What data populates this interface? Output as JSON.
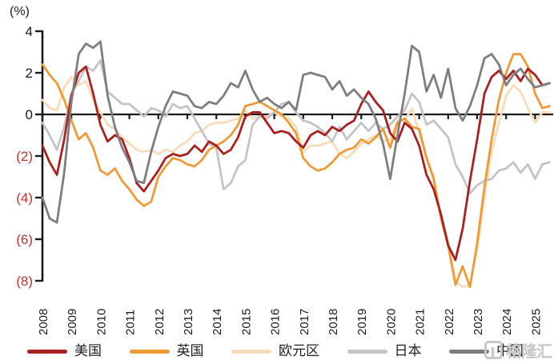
{
  "chart": {
    "unit_label": "(%)",
    "axis_color": "#1a1a1a",
    "positive_tick_color": "#1a1a1a",
    "negative_tick_color": "#c0302c",
    "y_tick_labels": [
      "4",
      "2",
      "0",
      "(2)",
      "(4)",
      "(6)",
      "(8)"
    ],
    "y_tick_values": [
      4,
      2,
      0,
      -2,
      -4,
      -6,
      -8
    ]
  },
  "chart_data": {
    "type": "line",
    "title": "",
    "ylabel": "(%)",
    "xlabel": "",
    "ylim": [
      -8,
      4
    ],
    "xlim": [
      2008,
      2025.5
    ],
    "grid": false,
    "legend_position": "bottom",
    "x_start": 2008,
    "x_step": 0.25,
    "x_tick_labels": [
      "2008",
      "2009",
      "2010",
      "2011",
      "2012",
      "2013",
      "2014",
      "2015",
      "2016",
      "2017",
      "2018",
      "2019",
      "2020",
      "2021",
      "2022",
      "2023",
      "2024",
      "2025"
    ],
    "z_order": [
      "eurozone",
      "japan",
      "uk",
      "us",
      "china"
    ],
    "series": [
      {
        "key": "us",
        "name": "美国",
        "color": "#a8201f",
        "values": [
          -1.5,
          -2.3,
          -2.9,
          -1.2,
          0.9,
          2.0,
          2.3,
          1.0,
          -0.5,
          -1.3,
          -1.0,
          -1.2,
          -2.1,
          -3.3,
          -3.7,
          -3.2,
          -2.7,
          -2.1,
          -1.9,
          -2.0,
          -1.9,
          -1.5,
          -1.8,
          -1.3,
          -1.5,
          -1.9,
          -1.7,
          -1.1,
          -0.1,
          0.1,
          0.1,
          -0.4,
          -0.9,
          -0.8,
          -0.9,
          -1.3,
          -1.6,
          -1.0,
          -0.8,
          -1.0,
          -0.6,
          -0.8,
          -0.5,
          -0.3,
          0.5,
          1.1,
          0.6,
          0.2,
          -0.9,
          -1.3,
          -0.4,
          -0.7,
          -1.5,
          -2.9,
          -3.6,
          -4.8,
          -6.3,
          -7.0,
          -5.5,
          -3.2,
          -1.2,
          1.0,
          1.8,
          2.1,
          1.7,
          2.1,
          1.6,
          2.2,
          1.9,
          1.4,
          1.5
        ]
      },
      {
        "key": "uk",
        "name": "英国",
        "color": "#ee9a36",
        "values": [
          2.4,
          1.9,
          1.5,
          0.7,
          -0.3,
          -1.2,
          -0.9,
          -1.6,
          -2.7,
          -2.9,
          -2.6,
          -3.2,
          -3.6,
          -4.1,
          -4.4,
          -4.2,
          -3.0,
          -2.5,
          -2.1,
          -2.2,
          -2.4,
          -2.5,
          -2.2,
          -1.7,
          -1.5,
          -1.3,
          -1.0,
          -0.5,
          0.4,
          0.5,
          0.6,
          0.4,
          0.2,
          0.0,
          -0.4,
          -0.9,
          -2.1,
          -2.5,
          -2.7,
          -2.6,
          -2.3,
          -1.9,
          -1.7,
          -1.6,
          -1.2,
          -1.4,
          -1.1,
          -0.7,
          -1.6,
          -0.4,
          -0.2,
          -0.6,
          -0.7,
          -2.1,
          -3.1,
          -5.0,
          -6.3,
          -8.2,
          -7.3,
          -8.3,
          -6.2,
          -3.5,
          -1.2,
          0.7,
          2.0,
          2.9,
          2.9,
          2.3,
          1.0,
          0.3,
          0.4
        ]
      },
      {
        "key": "eurozone",
        "name": "欧元区",
        "color": "#f6dcba",
        "values": [
          0.7,
          0.3,
          0.2,
          1.3,
          1.8,
          1.4,
          1.6,
          0.7,
          0.1,
          -0.5,
          -0.7,
          -1.1,
          -1.4,
          -1.7,
          -1.8,
          -1.7,
          -1.9,
          -1.7,
          -1.8,
          -1.5,
          -1.3,
          -0.9,
          -0.8,
          -0.5,
          -0.4,
          -0.4,
          -0.3,
          -0.2,
          0.2,
          -0.2,
          -0.1,
          -0.1,
          0.1,
          -0.1,
          -0.2,
          -0.6,
          -1.8,
          -1.5,
          -1.5,
          -1.4,
          -1.3,
          -1.9,
          -2.1,
          -1.8,
          -1.4,
          -1.2,
          -1.0,
          -1.3,
          -1.2,
          -0.3,
          -0.3,
          0.3,
          -0.9,
          -2.0,
          -3.0,
          -4.9,
          -6.1,
          -8.0,
          -8.3,
          -8.2,
          -6.5,
          -4.0,
          -1.8,
          -0.4,
          0.9,
          1.4,
          1.1,
          0.3,
          -0.4,
          0.1,
          0.1
        ]
      },
      {
        "key": "japan",
        "name": "日本",
        "color": "#c4c4c4",
        "values": [
          -0.4,
          -1.0,
          -1.7,
          -0.6,
          1.0,
          1.6,
          2.3,
          2.1,
          2.6,
          1.1,
          0.8,
          0.5,
          0.5,
          0.2,
          -0.1,
          0.3,
          0.2,
          -0.1,
          0.5,
          0.3,
          0.4,
          -0.2,
          -0.8,
          -1.4,
          -1.6,
          -3.6,
          -3.3,
          -2.5,
          -2.2,
          -0.5,
          -0.1,
          -0.2,
          0.1,
          0.5,
          0.6,
          0.1,
          -0.3,
          -0.4,
          -0.6,
          -0.9,
          -1.3,
          -0.6,
          -1.2,
          -0.8,
          -0.4,
          -0.8,
          -0.4,
          -0.7,
          -0.5,
          -0.1,
          0.2,
          1.0,
          0.6,
          -0.5,
          -0.3,
          -0.7,
          -1.1,
          -2.4,
          -3.0,
          -3.8,
          -3.4,
          -3.2,
          -3.1,
          -2.7,
          -2.6,
          -2.3,
          -2.8,
          -2.4,
          -3.1,
          -2.4,
          -2.3
        ]
      },
      {
        "key": "china",
        "name": "中国",
        "color": "#7e7e7e",
        "values": [
          -4.0,
          -5.0,
          -5.2,
          -2.8,
          0.6,
          2.9,
          3.4,
          3.2,
          3.5,
          0.9,
          -0.6,
          -1.6,
          -2.3,
          -3.2,
          -3.3,
          -1.8,
          -0.6,
          0.4,
          1.1,
          1.0,
          0.9,
          0.4,
          0.3,
          0.6,
          0.5,
          0.9,
          1.5,
          1.3,
          2.1,
          1.2,
          0.6,
          0.8,
          0.5,
          0.3,
          0.6,
          0.2,
          1.9,
          2.0,
          1.9,
          1.8,
          1.2,
          1.6,
          0.9,
          1.2,
          0.8,
          0.5,
          -0.2,
          -1.4,
          -3.1,
          -1.0,
          1.0,
          3.3,
          3.0,
          1.1,
          1.9,
          0.8,
          2.2,
          0.3,
          -0.3,
          0.4,
          1.4,
          2.7,
          2.9,
          2.4,
          1.4,
          1.9,
          2.2,
          1.7,
          1.3,
          1.4,
          1.5
        ]
      }
    ]
  },
  "watermark": {
    "text": "格隆汇"
  }
}
